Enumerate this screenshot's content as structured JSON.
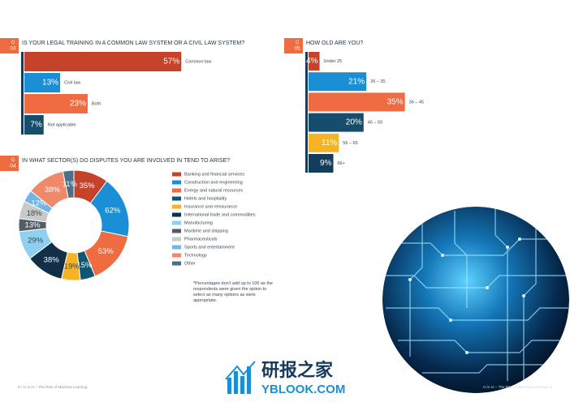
{
  "chart_data": [
    {
      "type": "bar",
      "orientation": "horizontal",
      "question_prefix": "Q",
      "question_number": "03",
      "title": "IS YOUR LEGAL TRAINING IN A COMMON LAW SYSTEM OR A CIVIL LAW SYSTEM?",
      "categories": [
        "Common law",
        "Civil law",
        "Both",
        "Not applicable"
      ],
      "values": [
        57,
        13,
        23,
        7
      ],
      "value_labels": [
        "57%",
        "13%",
        "23%",
        "7%"
      ],
      "colors": [
        "#c5432a",
        "#1b8fd6",
        "#ef6b41",
        "#174d6c"
      ]
    },
    {
      "type": "bar",
      "orientation": "horizontal",
      "question_prefix": "Q",
      "question_number": "05",
      "title": "HOW OLD ARE YOU?",
      "categories": [
        "Under 25",
        "26 – 35",
        "36 – 45",
        "46 – 55",
        "56 – 65",
        "66+"
      ],
      "values": [
        4,
        21,
        35,
        20,
        11,
        9
      ],
      "value_labels": [
        "4%",
        "21%",
        "35%",
        "20%",
        "11%",
        "9%"
      ],
      "colors": [
        "#c5432a",
        "#1b8fd6",
        "#ef6b41",
        "#174d6c",
        "#f6b325",
        "#163c5b"
      ]
    },
    {
      "type": "donut",
      "question_prefix": "Q",
      "question_number": "04",
      "title": "IN WHAT SECTOR(S) DO DISPUTES YOU ARE INVOLVED IN TEND TO ARISE?",
      "categories": [
        "Banking and financial services",
        "Construction and engineering",
        "Energy and natural resources",
        "Hotels and hospitality",
        "Insurance and reinsurance",
        "International trade and commodities",
        "Manufacturing",
        "Maritime and shipping",
        "Pharmaceuticals",
        "Sports and entertainment",
        "Technology",
        "Other"
      ],
      "values": [
        35,
        62,
        53,
        15,
        19,
        38,
        29,
        13,
        18,
        12,
        38,
        11
      ],
      "value_labels": [
        "35%",
        "62%",
        "53%",
        "15%",
        "19%",
        "38%",
        "29%",
        "13%",
        "18%",
        "12%",
        "38%",
        "11%"
      ],
      "colors": [
        "#c5432a",
        "#1b8fd6",
        "#ef6b41",
        "#0f5673",
        "#f6b325",
        "#112f47",
        "#8fd0f0",
        "#545d66",
        "#c9c9c9",
        "#6fb6e6",
        "#f0896a",
        "#4f6e88"
      ],
      "legend": "right",
      "note": "*Percentages don't add up to 100 as the respondents were given the option to select as many options as were appropriate."
    }
  ],
  "footer": {
    "left": "8 / AI in IA – The Rise of Machine Learning",
    "right": "AI in IA – The Rise of Machine Learning / 9"
  },
  "watermark": {
    "name": "研报之家",
    "url": "YBLOOK.COM"
  }
}
